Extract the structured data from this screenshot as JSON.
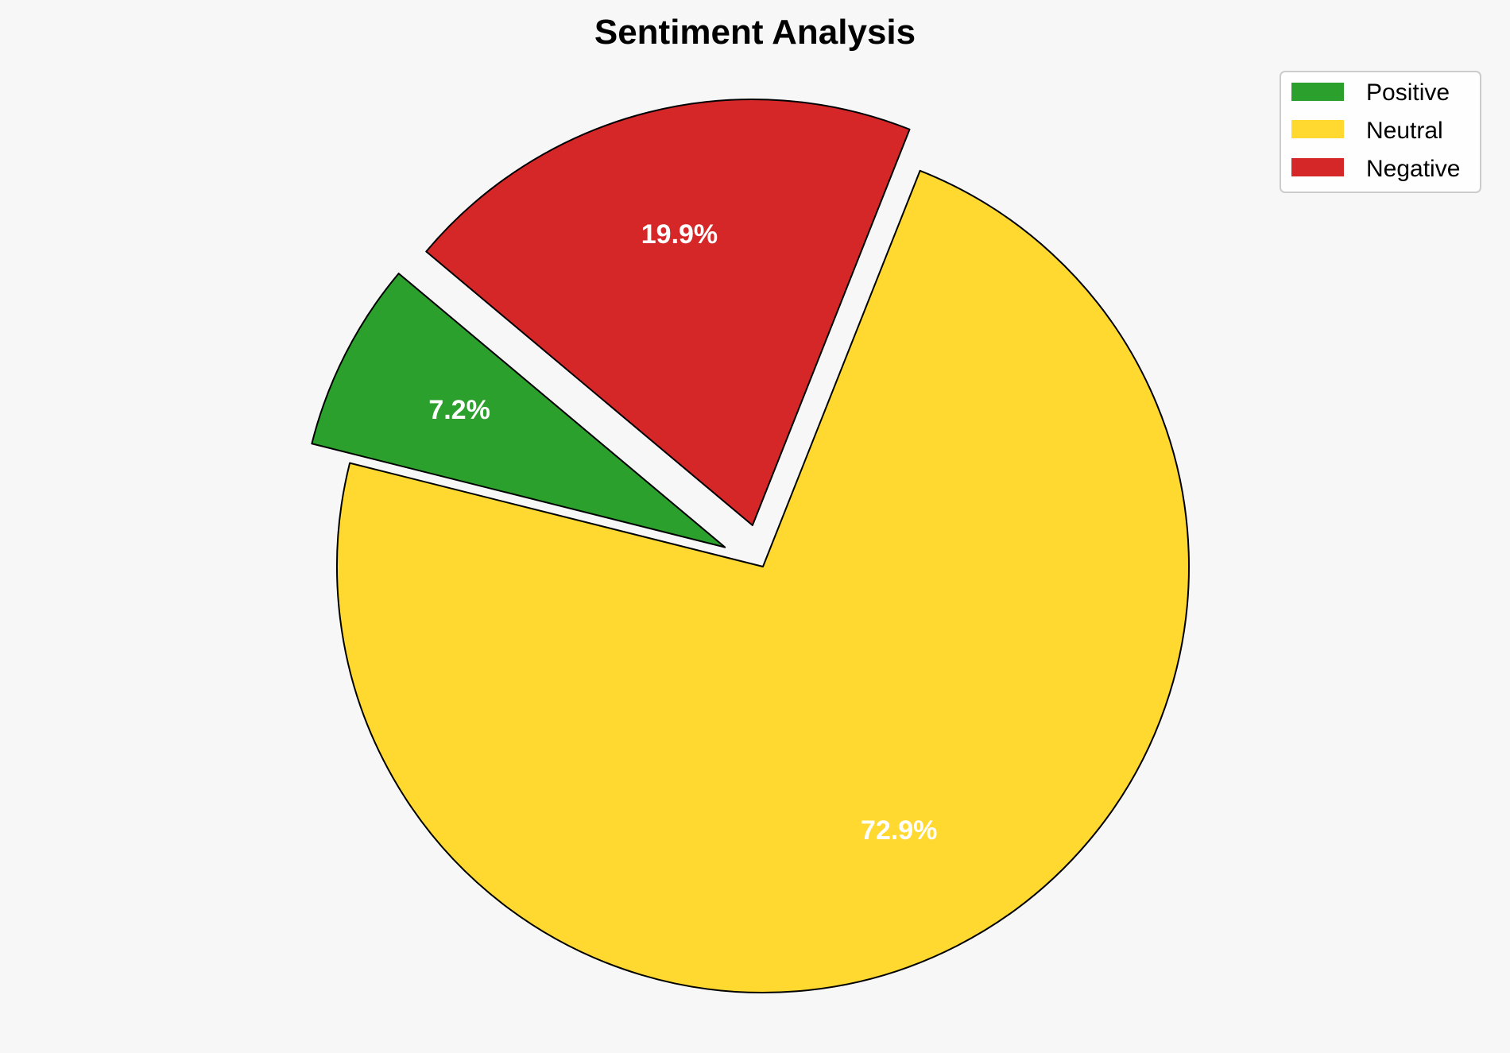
{
  "chart_data": {
    "type": "pie",
    "title": "Sentiment Analysis",
    "categories": [
      "Positive",
      "Neutral",
      "Negative"
    ],
    "values": [
      7.2,
      72.9,
      19.9
    ],
    "labels": [
      "7.2%",
      "72.9%",
      "19.9%"
    ],
    "colors": [
      "#2ca02c",
      "#ffd92f",
      "#d62728"
    ],
    "explode": [
      0.1,
      0,
      0.1
    ],
    "start_angle_deg": 140,
    "direction": "counterclockwise",
    "legend_placement": "top-right"
  }
}
